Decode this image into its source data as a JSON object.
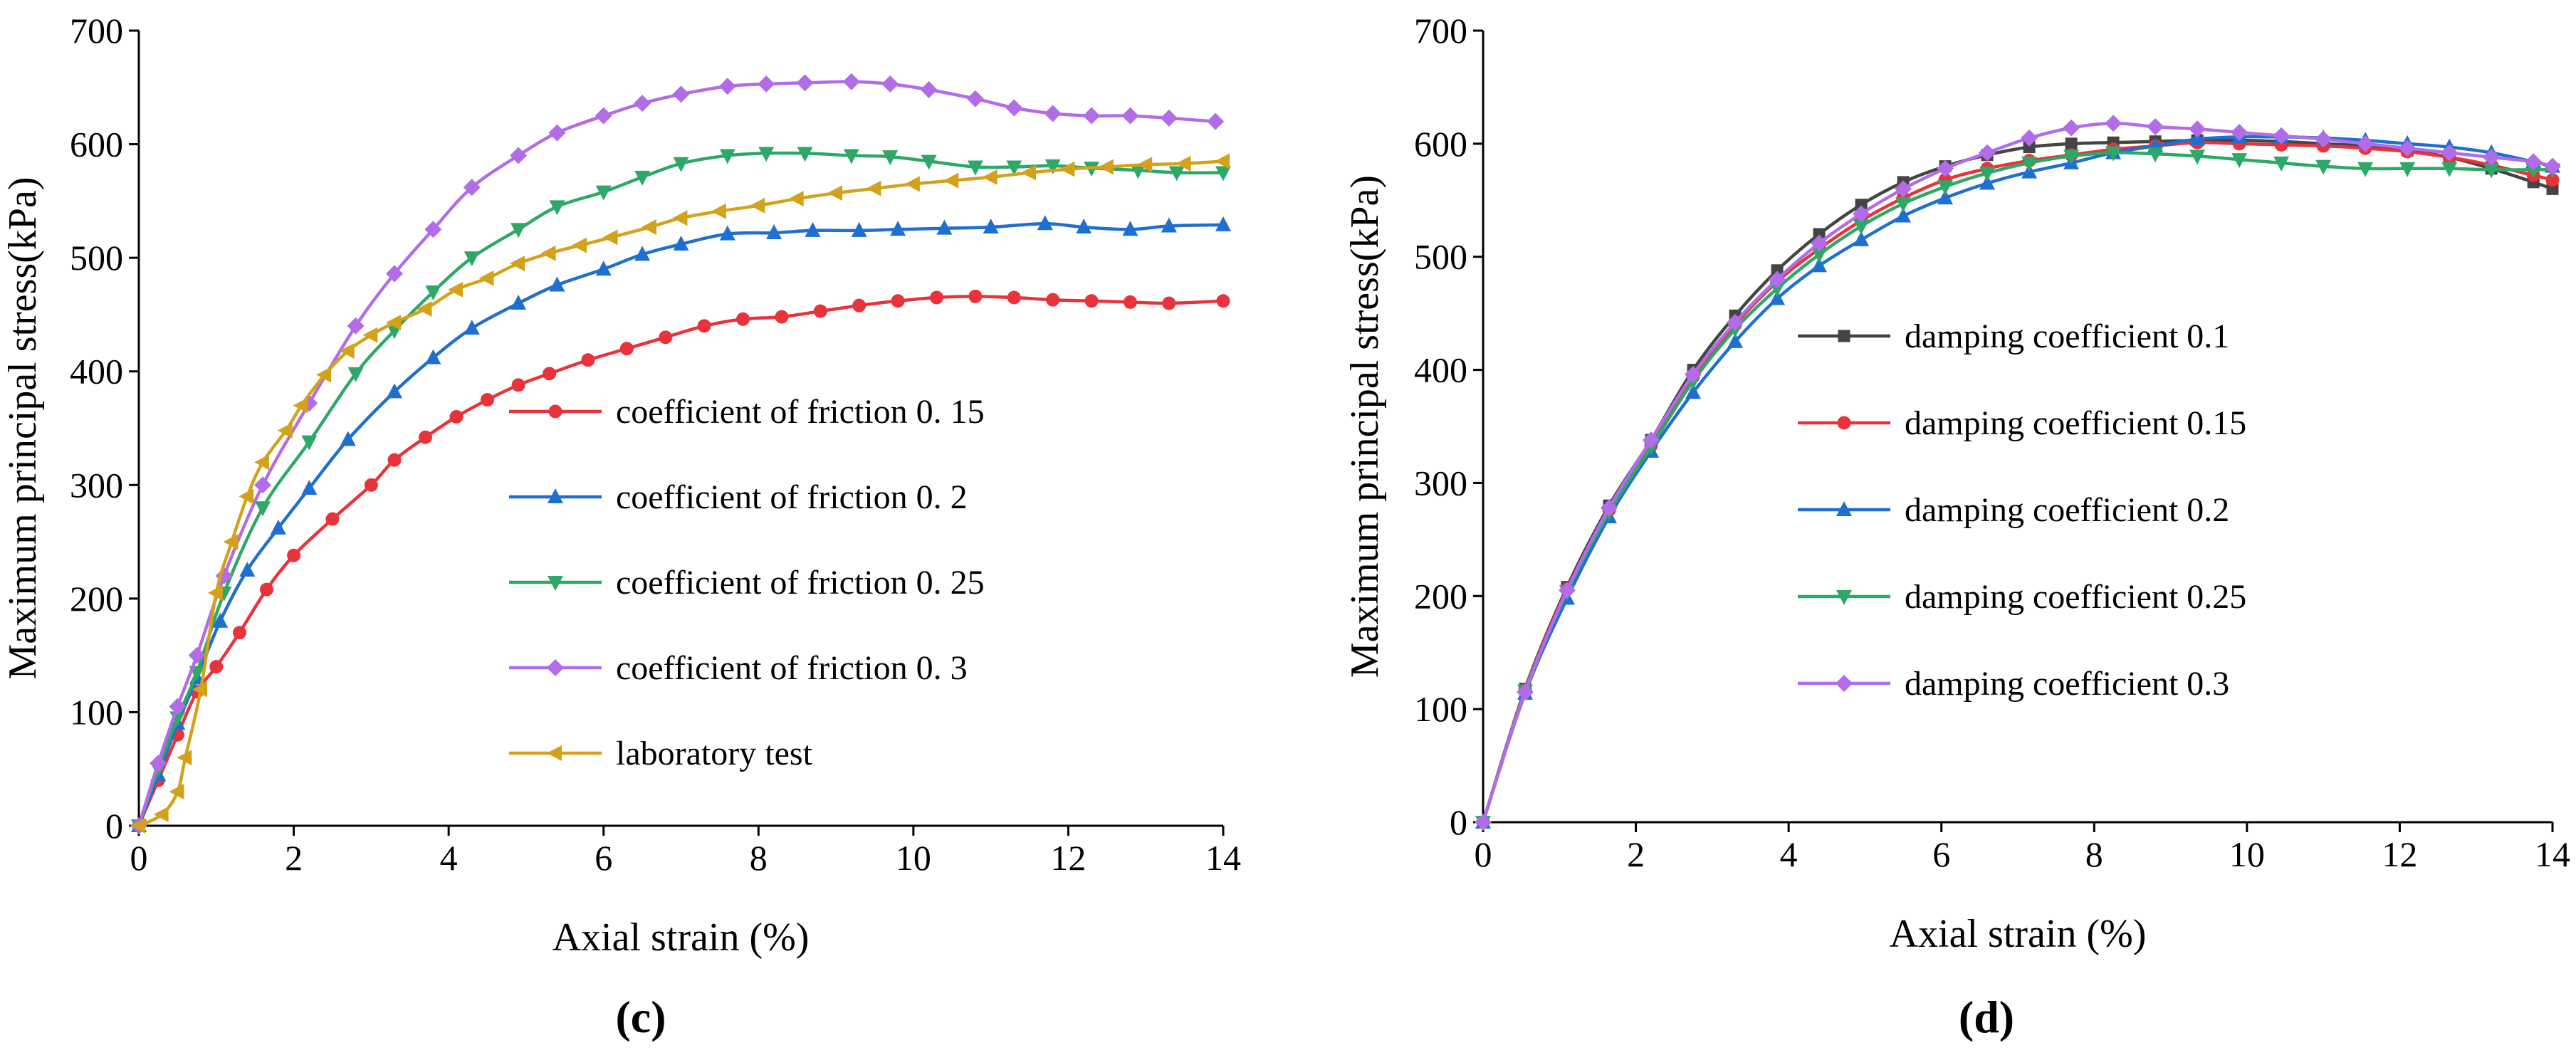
{
  "chart_data": [
    {
      "type": "line",
      "panel_label": "(c)",
      "xlabel": "Axial strain (%)",
      "ylabel": "Maximum principal stress(kPa)",
      "xlim": [
        0,
        14
      ],
      "ylim": [
        0,
        700
      ],
      "xticks": [
        0,
        2,
        4,
        6,
        8,
        10,
        12,
        14
      ],
      "yticks": [
        0,
        100,
        200,
        300,
        400,
        500,
        600,
        700
      ],
      "legend_position": "center-right",
      "series": [
        {
          "name": "coefficient of friction 0. 15",
          "color": "#e8333a",
          "marker": "circle",
          "x": [
            0,
            0.25,
            0.5,
            0.75,
            1.0,
            1.3,
            1.65,
            2.0,
            2.5,
            3.0,
            3.3,
            3.7,
            4.1,
            4.5,
            4.9,
            5.3,
            5.8,
            6.3,
            6.8,
            7.3,
            7.8,
            8.3,
            8.8,
            9.3,
            9.8,
            10.3,
            10.8,
            11.3,
            11.8,
            12.3,
            12.8,
            13.3,
            14.0
          ],
          "y": [
            0,
            40,
            80,
            118,
            140,
            170,
            208,
            238,
            270,
            300,
            322,
            342,
            360,
            375,
            388,
            398,
            410,
            420,
            430,
            440,
            446,
            448,
            453,
            458,
            462,
            465,
            466,
            465,
            463,
            462,
            461,
            460,
            462
          ]
        },
        {
          "name": "coefficient of friction 0. 2",
          "color": "#1f6fd1",
          "marker": "triangle-up",
          "x": [
            0,
            0.25,
            0.5,
            0.75,
            1.05,
            1.4,
            1.8,
            2.2,
            2.7,
            3.3,
            3.8,
            4.3,
            4.9,
            5.4,
            6.0,
            6.5,
            7.0,
            7.6,
            8.2,
            8.7,
            9.3,
            9.8,
            10.4,
            11.0,
            11.7,
            12.2,
            12.8,
            13.3,
            14.0
          ],
          "y": [
            0,
            45,
            90,
            130,
            180,
            225,
            262,
            297,
            340,
            382,
            412,
            438,
            460,
            476,
            490,
            503,
            512,
            521,
            522,
            524,
            524,
            525,
            526,
            527,
            530,
            527,
            525,
            528,
            529
          ]
        },
        {
          "name": "coefficient of friction 0. 25",
          "color": "#2da866",
          "marker": "triangle-down",
          "x": [
            0,
            0.25,
            0.5,
            0.75,
            1.1,
            1.6,
            2.2,
            2.8,
            3.3,
            3.8,
            4.3,
            4.9,
            5.4,
            6.0,
            6.5,
            7.0,
            7.6,
            8.1,
            8.6,
            9.2,
            9.7,
            10.2,
            10.8,
            11.3,
            11.8,
            12.3,
            12.9,
            13.4,
            14.0
          ],
          "y": [
            0,
            50,
            95,
            135,
            205,
            280,
            338,
            398,
            436,
            470,
            500,
            525,
            545,
            558,
            571,
            583,
            590,
            592,
            592,
            590,
            589,
            585,
            580,
            580,
            581,
            579,
            577,
            575,
            575
          ]
        },
        {
          "name": "coefficient of friction 0. 3",
          "color": "#b26ce8",
          "marker": "diamond",
          "x": [
            0,
            0.25,
            0.5,
            0.75,
            1.1,
            1.6,
            2.2,
            2.8,
            3.3,
            3.8,
            4.3,
            4.9,
            5.4,
            6.0,
            6.5,
            7.0,
            7.6,
            8.1,
            8.6,
            9.2,
            9.7,
            10.2,
            10.8,
            11.3,
            11.8,
            12.3,
            12.8,
            13.3,
            13.9
          ],
          "y": [
            0,
            55,
            105,
            150,
            220,
            300,
            372,
            440,
            486,
            525,
            562,
            590,
            610,
            625,
            636,
            644,
            651,
            653,
            654,
            655,
            653,
            648,
            640,
            632,
            627,
            625,
            625,
            623,
            620
          ]
        },
        {
          "name": "laboratory test",
          "color": "#d4a21a",
          "marker": "triangle-left",
          "x": [
            0,
            0.3,
            0.5,
            0.6,
            0.8,
            1.0,
            1.2,
            1.4,
            1.6,
            1.9,
            2.1,
            2.4,
            2.7,
            3.0,
            3.3,
            3.7,
            4.1,
            4.5,
            4.9,
            5.3,
            5.7,
            6.1,
            6.6,
            7.0,
            7.5,
            8.0,
            8.5,
            9.0,
            9.5,
            10.0,
            10.5,
            11.0,
            11.5,
            12.0,
            12.5,
            13.0,
            13.5,
            14.0
          ],
          "y": [
            0,
            10,
            30,
            60,
            120,
            205,
            250,
            290,
            320,
            348,
            370,
            397,
            418,
            432,
            443,
            455,
            472,
            482,
            495,
            504,
            511,
            518,
            527,
            535,
            541,
            546,
            552,
            557,
            561,
            565,
            568,
            571,
            575,
            578,
            580,
            582,
            583,
            585
          ]
        }
      ]
    },
    {
      "type": "line",
      "panel_label": "(d)",
      "xlabel": "Axial strain (%)",
      "ylabel": "Maximum principal stress(kPa)",
      "xlim": [
        0,
        14
      ],
      "ylim": [
        0,
        700
      ],
      "xticks": [
        0,
        2,
        4,
        6,
        8,
        10,
        12,
        14
      ],
      "yticks": [
        0,
        100,
        200,
        300,
        400,
        500,
        600,
        700
      ],
      "legend_position": "center-right",
      "series": [
        {
          "name": "damping coefficient  0.1",
          "color": "#444444",
          "marker": "square",
          "x": [
            0,
            0.55,
            1.1,
            1.65,
            2.2,
            2.75,
            3.3,
            3.85,
            4.4,
            4.95,
            5.5,
            6.05,
            6.6,
            7.15,
            7.7,
            8.25,
            8.8,
            9.35,
            9.9,
            10.45,
            11.0,
            11.55,
            12.1,
            12.65,
            13.2,
            13.75,
            14.0
          ],
          "y": [
            0,
            118,
            208,
            280,
            338,
            400,
            448,
            488,
            520,
            546,
            566,
            580,
            590,
            597,
            600,
            601,
            602,
            603,
            603,
            602,
            600,
            598,
            594,
            588,
            578,
            566,
            560
          ]
        },
        {
          "name": "damping coefficient  0.15",
          "color": "#e8333a",
          "marker": "circle",
          "x": [
            0,
            0.55,
            1.1,
            1.65,
            2.2,
            2.75,
            3.3,
            3.85,
            4.4,
            4.95,
            5.5,
            6.05,
            6.6,
            7.15,
            7.7,
            8.25,
            8.8,
            9.35,
            9.9,
            10.45,
            11.0,
            11.55,
            12.1,
            12.65,
            13.2,
            13.75,
            14.0
          ],
          "y": [
            0,
            117,
            206,
            276,
            333,
            394,
            440,
            478,
            507,
            532,
            552,
            568,
            578,
            585,
            590,
            595,
            598,
            601,
            600,
            599,
            598,
            596,
            593,
            588,
            581,
            572,
            568
          ]
        },
        {
          "name": "damping coefficient  0.2",
          "color": "#1f6fd1",
          "marker": "triangle-up",
          "x": [
            0,
            0.55,
            1.1,
            1.65,
            2.2,
            2.75,
            3.3,
            3.85,
            4.4,
            4.95,
            5.5,
            6.05,
            6.6,
            7.15,
            7.7,
            8.25,
            8.8,
            9.35,
            9.9,
            10.45,
            11.0,
            11.55,
            12.1,
            12.65,
            13.2,
            13.75,
            14.0
          ],
          "y": [
            0,
            114,
            198,
            270,
            328,
            380,
            425,
            463,
            492,
            515,
            536,
            552,
            565,
            575,
            583,
            592,
            598,
            604,
            606,
            606,
            605,
            603,
            600,
            597,
            592,
            584,
            580
          ]
        },
        {
          "name": "damping coefficient  0.25",
          "color": "#2da866",
          "marker": "triangle-down",
          "x": [
            0,
            0.55,
            1.1,
            1.65,
            2.2,
            2.75,
            3.3,
            3.85,
            4.4,
            4.95,
            5.5,
            6.05,
            6.6,
            7.15,
            7.7,
            8.25,
            8.8,
            9.35,
            9.9,
            10.45,
            11.0,
            11.55,
            12.1,
            12.65,
            13.2,
            13.75,
            14.0
          ],
          "y": [
            0,
            116,
            204,
            274,
            332,
            390,
            436,
            472,
            502,
            527,
            547,
            562,
            574,
            583,
            589,
            592,
            591,
            589,
            586,
            583,
            580,
            578,
            578,
            578,
            577,
            577,
            577
          ]
        },
        {
          "name": "damping coefficient  0.3",
          "color": "#b26ce8",
          "marker": "diamond",
          "x": [
            0,
            0.55,
            1.1,
            1.65,
            2.2,
            2.75,
            3.3,
            3.85,
            4.4,
            4.95,
            5.5,
            6.05,
            6.6,
            7.15,
            7.7,
            8.25,
            8.8,
            9.35,
            9.9,
            10.45,
            11.0,
            11.55,
            12.1,
            12.65,
            13.2,
            13.75,
            14.0
          ],
          "y": [
            0,
            115,
            205,
            278,
            338,
            396,
            442,
            480,
            512,
            538,
            560,
            578,
            592,
            605,
            614,
            618,
            615,
            613,
            610,
            607,
            604,
            600,
            596,
            592,
            588,
            584,
            580
          ]
        }
      ]
    }
  ]
}
